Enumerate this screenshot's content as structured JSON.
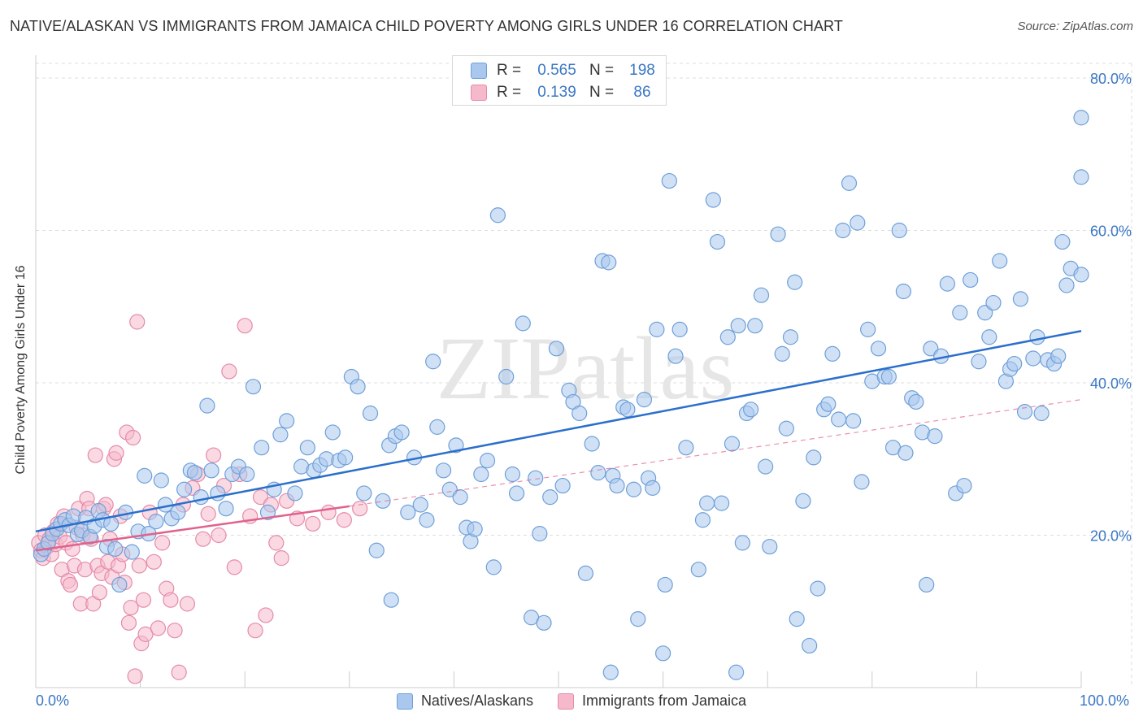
{
  "title": "NATIVE/ALASKAN VS IMMIGRANTS FROM JAMAICA CHILD POVERTY AMONG GIRLS UNDER 16 CORRELATION CHART",
  "source": "Source: ZipAtlas.com",
  "watermark": "ZIPatlas",
  "legend": {
    "rows": [
      {
        "r_label": "R =",
        "r_value": "0.565",
        "n_label": "N =",
        "n_value": "198"
      },
      {
        "r_label": "R =",
        "r_value": "0.139",
        "n_label": "N =",
        "n_value": "86"
      }
    ]
  },
  "colors": {
    "blue_fill": "#aac8ee",
    "blue_stroke": "#6e9fd8",
    "blue_line": "#2b6fcc",
    "pink_fill": "#f6b9cc",
    "pink_stroke": "#e58aa8",
    "pink_line": "#e0628c",
    "tick_text": "#3a77c5",
    "grid": "#dddddd"
  },
  "chart_data": {
    "type": "scatter",
    "title": "NATIVE/ALASKAN VS IMMIGRANTS FROM JAMAICA CHILD POVERTY AMONG GIRLS UNDER 16 CORRELATION CHART",
    "xlabel": "",
    "ylabel": "Child Poverty Among Girls Under 16",
    "xlim": [
      0,
      100
    ],
    "ylim": [
      0,
      80
    ],
    "x_tick_labels": [
      "0.0%",
      "100.0%"
    ],
    "y_ticks": [
      20,
      40,
      60,
      80
    ],
    "y_tick_labels": [
      "20.0%",
      "40.0%",
      "60.0%",
      "80.0%"
    ],
    "grid": true,
    "legend_position": "top-center",
    "series": [
      {
        "name": "Natives/Alaskans",
        "color": "#aac8ee",
        "points": [
          [
            0.5,
            17.5
          ],
          [
            0.8,
            18.2
          ],
          [
            1.2,
            19.0
          ],
          [
            1.6,
            20.2
          ],
          [
            2.0,
            20.8
          ],
          [
            2.4,
            21.5
          ],
          [
            2.8,
            22.0
          ],
          [
            3.2,
            21.3
          ],
          [
            3.6,
            22.5
          ],
          [
            4.0,
            20.1
          ],
          [
            4.4,
            20.6
          ],
          [
            4.8,
            22.3
          ],
          [
            5.2,
            19.8
          ],
          [
            5.6,
            21.2
          ],
          [
            6.0,
            23.2
          ],
          [
            6.4,
            22.0
          ],
          [
            6.8,
            18.5
          ],
          [
            7.2,
            21.5
          ],
          [
            7.6,
            18.2
          ],
          [
            8.0,
            13.5
          ],
          [
            8.6,
            23.0
          ],
          [
            9.2,
            17.8
          ],
          [
            9.8,
            20.5
          ],
          [
            10.4,
            27.8
          ],
          [
            10.8,
            20.2
          ],
          [
            11.5,
            21.8
          ],
          [
            12.0,
            27.2
          ],
          [
            12.4,
            24.0
          ],
          [
            13.0,
            22.2
          ],
          [
            13.6,
            23.0
          ],
          [
            14.2,
            26.0
          ],
          [
            14.8,
            28.5
          ],
          [
            15.2,
            28.2
          ],
          [
            15.8,
            25.0
          ],
          [
            16.4,
            37.0
          ],
          [
            16.8,
            28.5
          ],
          [
            17.4,
            25.5
          ],
          [
            18.2,
            23.5
          ],
          [
            18.8,
            28.0
          ],
          [
            19.4,
            29.0
          ],
          [
            20.2,
            28.0
          ],
          [
            20.8,
            39.5
          ],
          [
            21.6,
            31.5
          ],
          [
            22.2,
            23.0
          ],
          [
            22.8,
            26.0
          ],
          [
            23.4,
            33.2
          ],
          [
            24.0,
            35.0
          ],
          [
            24.8,
            25.5
          ],
          [
            25.4,
            29.0
          ],
          [
            26.0,
            31.5
          ],
          [
            26.6,
            28.5
          ],
          [
            27.2,
            29.2
          ],
          [
            27.8,
            30.0
          ],
          [
            28.4,
            33.5
          ],
          [
            29.0,
            29.8
          ],
          [
            29.6,
            30.2
          ],
          [
            30.2,
            40.8
          ],
          [
            30.8,
            39.5
          ],
          [
            31.4,
            25.5
          ],
          [
            32.0,
            36.0
          ],
          [
            32.6,
            18.0
          ],
          [
            33.2,
            24.5
          ],
          [
            33.8,
            31.8
          ],
          [
            34.4,
            33.0
          ],
          [
            35.0,
            33.5
          ],
          [
            35.6,
            23.0
          ],
          [
            36.2,
            30.2
          ],
          [
            36.8,
            24.0
          ],
          [
            37.4,
            22.0
          ],
          [
            38.0,
            42.8
          ],
          [
            38.4,
            34.2
          ],
          [
            39.0,
            28.5
          ],
          [
            39.6,
            26.0
          ],
          [
            40.2,
            31.8
          ],
          [
            40.6,
            25.0
          ],
          [
            41.2,
            21.0
          ],
          [
            41.6,
            19.2
          ],
          [
            42.0,
            20.8
          ],
          [
            42.6,
            28.0
          ],
          [
            43.2,
            29.8
          ],
          [
            43.8,
            15.8
          ],
          [
            44.2,
            62.0
          ],
          [
            45.0,
            40.8
          ],
          [
            45.6,
            28.0
          ],
          [
            46.0,
            25.5
          ],
          [
            46.6,
            47.8
          ],
          [
            47.4,
            9.2
          ],
          [
            47.8,
            27.5
          ],
          [
            48.2,
            20.2
          ],
          [
            48.6,
            8.5
          ],
          [
            49.2,
            25.0
          ],
          [
            49.8,
            44.5
          ],
          [
            50.4,
            26.5
          ],
          [
            51.0,
            39.0
          ],
          [
            51.4,
            37.5
          ],
          [
            52.0,
            36.0
          ],
          [
            52.6,
            15.0
          ],
          [
            53.2,
            32.0
          ],
          [
            53.8,
            28.2
          ],
          [
            54.2,
            56.0
          ],
          [
            54.8,
            55.8
          ],
          [
            55.2,
            27.8
          ],
          [
            55.6,
            26.5
          ],
          [
            56.2,
            36.8
          ],
          [
            56.6,
            36.5
          ],
          [
            57.2,
            26.0
          ],
          [
            57.6,
            9.0
          ],
          [
            58.2,
            37.8
          ],
          [
            58.6,
            27.5
          ],
          [
            59.0,
            26.2
          ],
          [
            59.4,
            47.0
          ],
          [
            60.2,
            13.5
          ],
          [
            60.6,
            66.5
          ],
          [
            61.2,
            43.5
          ],
          [
            61.6,
            47.0
          ],
          [
            62.2,
            31.5
          ],
          [
            63.4,
            15.5
          ],
          [
            63.8,
            22.0
          ],
          [
            64.2,
            24.2
          ],
          [
            64.8,
            64.0
          ],
          [
            65.2,
            58.5
          ],
          [
            65.6,
            24.2
          ],
          [
            66.2,
            46.0
          ],
          [
            66.6,
            32.0
          ],
          [
            67.2,
            47.5
          ],
          [
            67.6,
            19.0
          ],
          [
            68.0,
            36.0
          ],
          [
            68.4,
            36.5
          ],
          [
            68.8,
            47.5
          ],
          [
            69.4,
            51.5
          ],
          [
            69.8,
            29.0
          ],
          [
            70.2,
            18.5
          ],
          [
            71.0,
            59.5
          ],
          [
            71.4,
            43.8
          ],
          [
            71.8,
            34.0
          ],
          [
            72.2,
            46.0
          ],
          [
            72.6,
            53.2
          ],
          [
            72.8,
            9.0
          ],
          [
            73.4,
            24.5
          ],
          [
            74.0,
            5.5
          ],
          [
            74.4,
            30.2
          ],
          [
            74.8,
            13.0
          ],
          [
            75.4,
            36.5
          ],
          [
            75.8,
            37.2
          ],
          [
            76.2,
            43.8
          ],
          [
            76.8,
            35.2
          ],
          [
            77.2,
            60.0
          ],
          [
            77.8,
            66.2
          ],
          [
            78.2,
            35.0
          ],
          [
            78.6,
            61.0
          ],
          [
            79.0,
            27.0
          ],
          [
            79.6,
            47.0
          ],
          [
            80.0,
            40.2
          ],
          [
            80.6,
            44.5
          ],
          [
            81.2,
            40.8
          ],
          [
            81.6,
            40.8
          ],
          [
            82.0,
            31.5
          ],
          [
            82.6,
            60.0
          ],
          [
            83.0,
            52.0
          ],
          [
            83.2,
            30.8
          ],
          [
            83.8,
            38.0
          ],
          [
            84.2,
            37.5
          ],
          [
            84.8,
            33.5
          ],
          [
            85.2,
            13.5
          ],
          [
            85.6,
            44.5
          ],
          [
            86.0,
            33.0
          ],
          [
            86.6,
            43.5
          ],
          [
            87.2,
            53.0
          ],
          [
            88.0,
            25.5
          ],
          [
            88.4,
            49.2
          ],
          [
            88.8,
            26.5
          ],
          [
            89.4,
            53.5
          ],
          [
            90.2,
            42.8
          ],
          [
            90.8,
            49.2
          ],
          [
            91.2,
            46.0
          ],
          [
            91.6,
            50.5
          ],
          [
            92.2,
            56.0
          ],
          [
            92.8,
            40.2
          ],
          [
            93.2,
            41.8
          ],
          [
            93.6,
            42.5
          ],
          [
            94.2,
            51.0
          ],
          [
            94.6,
            36.2
          ],
          [
            95.4,
            43.2
          ],
          [
            95.8,
            46.0
          ],
          [
            96.2,
            36.0
          ],
          [
            96.8,
            43.0
          ],
          [
            97.4,
            42.5
          ],
          [
            97.8,
            43.5
          ],
          [
            98.2,
            58.5
          ],
          [
            98.6,
            52.8
          ],
          [
            99.0,
            55.0
          ],
          [
            100.0,
            54.2
          ],
          [
            100.0,
            67.0
          ],
          [
            60.0,
            4.5
          ],
          [
            34.0,
            11.5
          ],
          [
            55.0,
            2.0
          ],
          [
            67.0,
            2.0
          ],
          [
            100.0,
            74.8
          ]
        ],
        "trendline": {
          "x": [
            0,
            100
          ],
          "y": [
            20.5,
            46.8
          ]
        }
      },
      {
        "name": "Immigrants from Jamaica",
        "color": "#f6b9cc",
        "points": [
          [
            0.3,
            19.0
          ],
          [
            0.5,
            18.0
          ],
          [
            0.7,
            17.0
          ],
          [
            0.9,
            20.0
          ],
          [
            1.1,
            18.5
          ],
          [
            1.3,
            19.5
          ],
          [
            1.5,
            17.5
          ],
          [
            1.7,
            20.5
          ],
          [
            1.9,
            18.8
          ],
          [
            2.1,
            21.5
          ],
          [
            2.3,
            19.8
          ],
          [
            2.5,
            15.5
          ],
          [
            2.7,
            22.5
          ],
          [
            2.9,
            19.0
          ],
          [
            3.1,
            14.0
          ],
          [
            3.3,
            13.5
          ],
          [
            3.5,
            18.2
          ],
          [
            3.7,
            16.0
          ],
          [
            3.9,
            21.0
          ],
          [
            4.1,
            23.5
          ],
          [
            4.3,
            11.0
          ],
          [
            4.5,
            20.0
          ],
          [
            4.7,
            15.5
          ],
          [
            4.9,
            24.8
          ],
          [
            5.1,
            23.5
          ],
          [
            5.3,
            19.5
          ],
          [
            5.5,
            11.0
          ],
          [
            5.7,
            30.5
          ],
          [
            5.9,
            16.0
          ],
          [
            6.1,
            12.5
          ],
          [
            6.3,
            15.0
          ],
          [
            6.5,
            23.5
          ],
          [
            6.7,
            24.0
          ],
          [
            6.9,
            16.5
          ],
          [
            7.1,
            19.5
          ],
          [
            7.3,
            14.5
          ],
          [
            7.5,
            30.0
          ],
          [
            7.7,
            30.8
          ],
          [
            7.9,
            16.0
          ],
          [
            8.1,
            22.5
          ],
          [
            8.3,
            17.5
          ],
          [
            8.5,
            13.8
          ],
          [
            8.7,
            33.5
          ],
          [
            8.9,
            8.5
          ],
          [
            9.1,
            10.5
          ],
          [
            9.3,
            32.8
          ],
          [
            9.5,
            1.5
          ],
          [
            9.7,
            48.0
          ],
          [
            9.9,
            16.0
          ],
          [
            10.1,
            5.8
          ],
          [
            10.3,
            11.5
          ],
          [
            10.5,
            7.0
          ],
          [
            10.9,
            23.0
          ],
          [
            11.3,
            16.5
          ],
          [
            11.7,
            7.8
          ],
          [
            12.1,
            19.0
          ],
          [
            12.5,
            13.0
          ],
          [
            12.9,
            11.5
          ],
          [
            13.3,
            7.5
          ],
          [
            13.7,
            2.0
          ],
          [
            14.1,
            24.0
          ],
          [
            14.5,
            11.0
          ],
          [
            15.0,
            26.2
          ],
          [
            15.5,
            28.0
          ],
          [
            16.0,
            19.5
          ],
          [
            16.5,
            22.8
          ],
          [
            17.0,
            30.5
          ],
          [
            17.5,
            20.0
          ],
          [
            18.0,
            26.5
          ],
          [
            18.5,
            41.5
          ],
          [
            19.0,
            15.8
          ],
          [
            19.5,
            28.0
          ],
          [
            20.0,
            47.5
          ],
          [
            20.5,
            22.5
          ],
          [
            21.0,
            7.5
          ],
          [
            21.5,
            25.0
          ],
          [
            22.0,
            9.5
          ],
          [
            22.5,
            24.0
          ],
          [
            23.0,
            19.0
          ],
          [
            23.5,
            17.0
          ],
          [
            24.0,
            24.5
          ],
          [
            25.0,
            22.2
          ],
          [
            26.5,
            21.5
          ],
          [
            28.0,
            23.0
          ],
          [
            29.5,
            22.0
          ],
          [
            31.0,
            23.5
          ]
        ],
        "trendline": {
          "x": [
            0,
            30
          ],
          "y": [
            18.0,
            23.8
          ]
        },
        "trendline_extended": {
          "x": [
            30,
            100
          ],
          "y": [
            23.8,
            37.8
          ]
        }
      }
    ]
  },
  "bottom_legend": {
    "items": [
      {
        "label": "Natives/Alaskans"
      },
      {
        "label": "Immigrants from Jamaica"
      }
    ]
  }
}
